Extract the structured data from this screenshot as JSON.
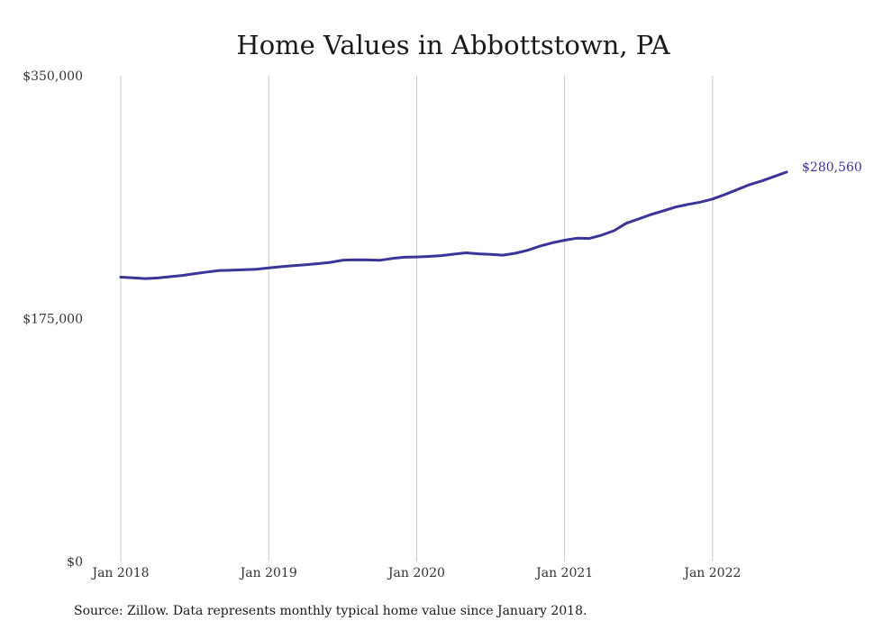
{
  "chart_data": {
    "type": "line",
    "title": "Home Values in Abbottstown, PA",
    "xlabel": "",
    "ylabel": "",
    "y_ticks": [
      "$350,000",
      "$175,000",
      "$0"
    ],
    "y_tick_values": [
      350000,
      175000,
      0
    ],
    "ylim": [
      0,
      350000
    ],
    "x_ticks": [
      "Jan 2018",
      "Jan 2019",
      "Jan 2020",
      "Jan 2021",
      "Jan 2022"
    ],
    "x_tick_values": [
      "2018-01",
      "2019-01",
      "2020-01",
      "2021-01",
      "2022-01"
    ],
    "xlim": [
      "2018-01",
      "2022-07"
    ],
    "grid": "vertical",
    "end_label": "$280,560",
    "line_color": "#3b3599",
    "series": [
      {
        "x": [
          "2018-01",
          "2018-02",
          "2018-03",
          "2018-04",
          "2018-05",
          "2018-06",
          "2018-07",
          "2018-08",
          "2018-09",
          "2018-10",
          "2018-11",
          "2018-12",
          "2019-01",
          "2019-02",
          "2019-03",
          "2019-04",
          "2019-05",
          "2019-06",
          "2019-07",
          "2019-08",
          "2019-09",
          "2019-10",
          "2019-11",
          "2019-12",
          "2020-01",
          "2020-02",
          "2020-03",
          "2020-04",
          "2020-05",
          "2020-06",
          "2020-07",
          "2020-08",
          "2020-09",
          "2020-10",
          "2020-11",
          "2020-12",
          "2021-01",
          "2021-02",
          "2021-03",
          "2021-04",
          "2021-05",
          "2021-06",
          "2021-07",
          "2021-08",
          "2021-09",
          "2021-10",
          "2021-11",
          "2021-12",
          "2022-01",
          "2022-02",
          "2022-03",
          "2022-04",
          "2022-05",
          "2022-06",
          "2022-07"
        ],
        "values": [
          204900,
          204400,
          203800,
          204300,
          205200,
          206100,
          207400,
          208600,
          209700,
          209900,
          210200,
          210600,
          211500,
          212400,
          213100,
          213800,
          214600,
          215500,
          217100,
          217400,
          217300,
          217000,
          218300,
          219200,
          219400,
          219800,
          220400,
          221400,
          222400,
          221700,
          221300,
          220700,
          222100,
          224200,
          227200,
          229600,
          231500,
          232900,
          232700,
          235100,
          238300,
          243700,
          246800,
          250000,
          252600,
          255400,
          257300,
          258900,
          261200,
          264400,
          268000,
          271500,
          274200,
          277400,
          280560
        ]
      }
    ]
  },
  "source_note": "Source: Zillow. Data represents monthly typical home value since January 2018."
}
